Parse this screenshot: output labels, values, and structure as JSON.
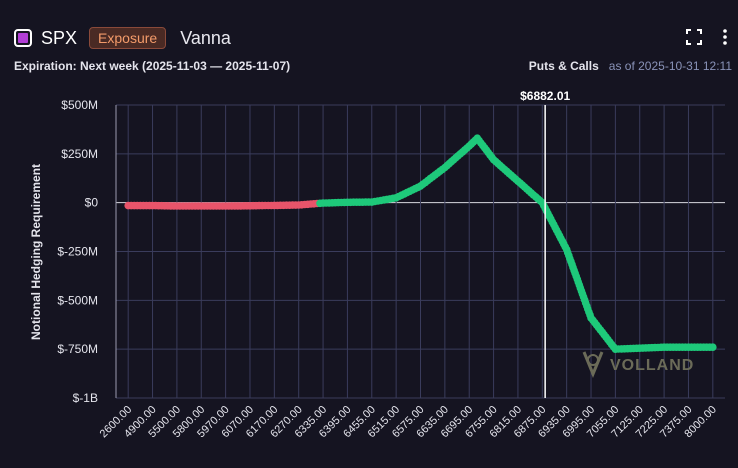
{
  "header": {
    "ticker": "SPX",
    "exposure_label": "Exposure",
    "metric": "Vanna",
    "expiration_text": "Expiration: Next week (2025-11-03 — 2025-11-07)",
    "puts_calls_label": "Puts & Calls",
    "as_of_text": "as of 2025-10-31 12:11",
    "icons": {
      "ticker": "ticker-square-icon",
      "expand": "expand-icon",
      "menu": "more-vertical-icon"
    }
  },
  "watermark": {
    "text": "VOLLAND"
  },
  "colors": {
    "positive": "#1ec97a",
    "negative": "#e8546a",
    "accent": "#b23ed6",
    "badge_text": "#f39b6a"
  },
  "chart_data": {
    "type": "scatter",
    "title": "",
    "xlabel": "",
    "ylabel": "Notional Hedging Requirement",
    "ylim": [
      -1000000000,
      500000000
    ],
    "y_ticks": [
      {
        "value": 500000000,
        "label": "$500M"
      },
      {
        "value": 250000000,
        "label": "$250M"
      },
      {
        "value": 0,
        "label": "$0"
      },
      {
        "value": -250000000,
        "label": "$-250M"
      },
      {
        "value": -500000000,
        "label": "$-500M"
      },
      {
        "value": -750000000,
        "label": "$-750M"
      },
      {
        "value": -1000000000,
        "label": "$-1B"
      }
    ],
    "x_tick_labels": [
      "2600.00",
      "4900.00",
      "5500.00",
      "5800.00",
      "5970.00",
      "6070.00",
      "6170.00",
      "6270.00",
      "6335.00",
      "6395.00",
      "6455.00",
      "6515.00",
      "6575.00",
      "6635.00",
      "6695.00",
      "6755.00",
      "6815.00",
      "6875.00",
      "6935.00",
      "6995.00",
      "7055.00",
      "7125.00",
      "7225.00",
      "7375.00",
      "8000.00"
    ],
    "grid": true,
    "spot_price": {
      "value": 6882.01,
      "label": "$6882.01"
    },
    "series": [
      {
        "values_by_tick": [
          {
            "x": "2600.00",
            "y": -15000000
          },
          {
            "x": "4900.00",
            "y": -15000000
          },
          {
            "x": "5500.00",
            "y": -17000000
          },
          {
            "x": "5800.00",
            "y": -17000000
          },
          {
            "x": "5970.00",
            "y": -17000000
          },
          {
            "x": "6070.00",
            "y": -16000000
          },
          {
            "x": "6170.00",
            "y": -14000000
          },
          {
            "x": "6270.00",
            "y": -12000000
          },
          {
            "x": "6335.00",
            "y": -2000000
          },
          {
            "x": "6395.00",
            "y": 2000000
          },
          {
            "x": "6455.00",
            "y": 3000000
          },
          {
            "x": "6515.00",
            "y": 25000000
          },
          {
            "x": "6575.00",
            "y": 85000000
          },
          {
            "x": "6635.00",
            "y": 180000000
          },
          {
            "x": "6695.00",
            "y": 290000000
          },
          {
            "x": "6755.00",
            "y": 220000000
          },
          {
            "x": "6815.00",
            "y": 110000000
          },
          {
            "x": "6875.00",
            "y": 0
          },
          {
            "x": "6935.00",
            "y": -240000000
          },
          {
            "x": "6995.00",
            "y": -590000000
          },
          {
            "x": "7055.00",
            "y": -750000000
          },
          {
            "x": "7125.00",
            "y": -745000000
          },
          {
            "x": "7225.00",
            "y": -740000000
          },
          {
            "x": "7375.00",
            "y": -740000000
          },
          {
            "x": "8000.00",
            "y": -740000000
          }
        ],
        "peak": {
          "x": 6715,
          "y": 330000000
        }
      }
    ]
  }
}
